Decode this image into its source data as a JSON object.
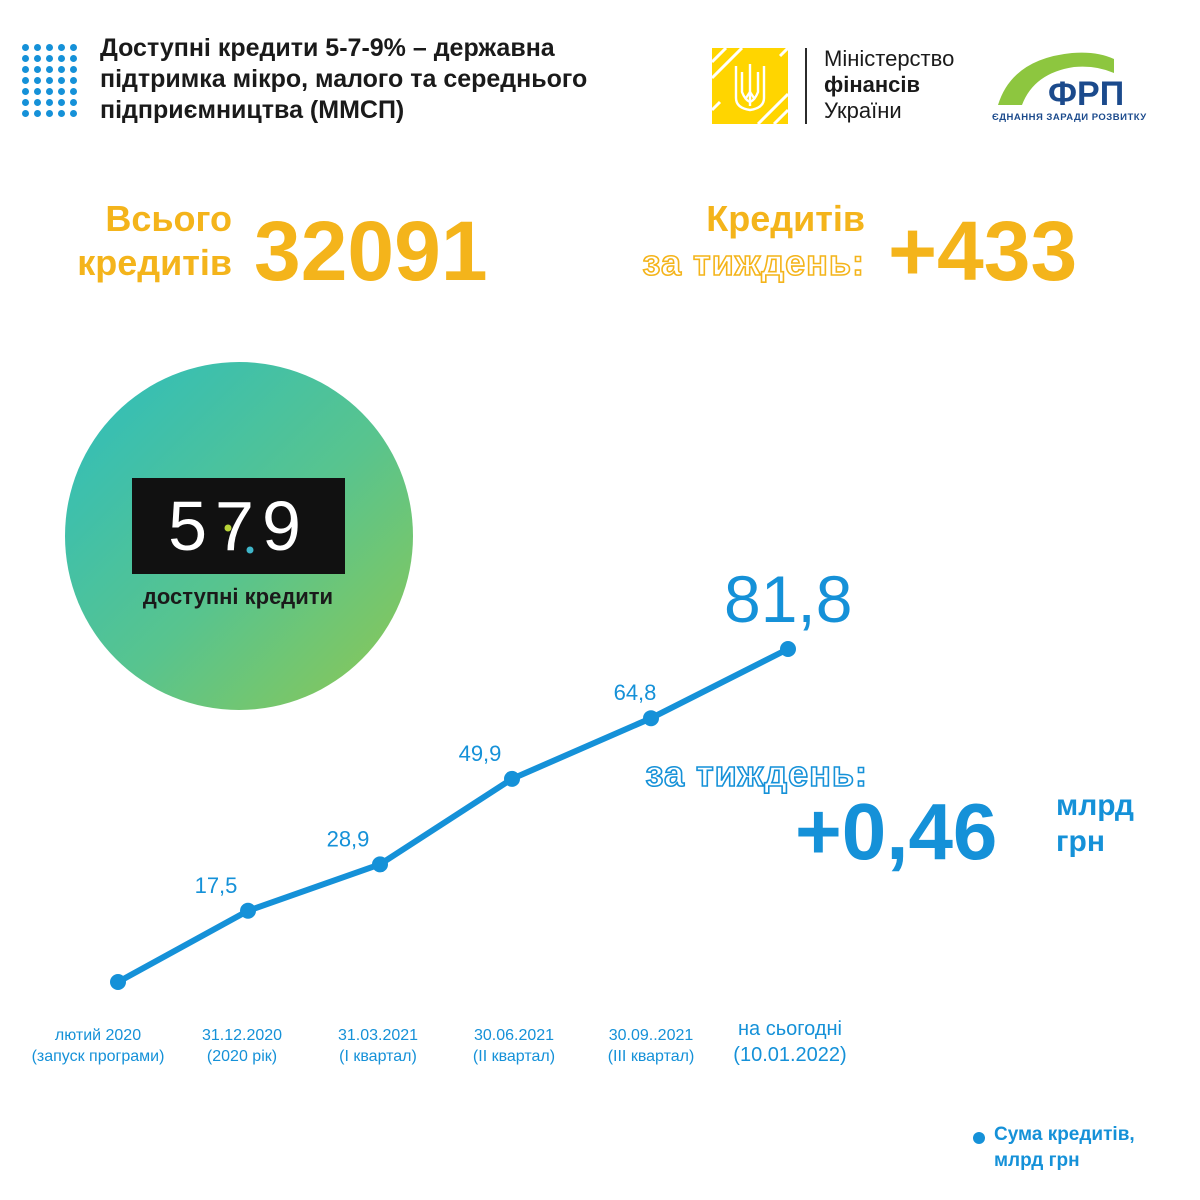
{
  "header": {
    "title_lines": [
      "Доступні кредити 5-7-9% – державна",
      "підтримка мікро, малого та середнього",
      "підприємництва (ММСП)"
    ],
    "ministry": {
      "line1": "Міністерство",
      "line2": "фінансів",
      "line3": "України"
    },
    "frp": {
      "name": "ФРП",
      "slogan": "ЄДНАННЯ ЗАРАДИ РОЗВИТКУ"
    }
  },
  "stats": {
    "total_label_1": "Всього",
    "total_label_2": "кредитів",
    "total_value": "32091",
    "week_label_1": "Кредитів",
    "week_label_2": "за тиждень:",
    "week_value": "+433"
  },
  "logo": {
    "digits": "579",
    "tagline": "доступні кредити"
  },
  "week_amount": {
    "label": "за тиждень:",
    "value": "+0,46",
    "unit_1": "млрд",
    "unit_2": "грн"
  },
  "legend": {
    "line1": "Сума кредитів,",
    "line2": "млрд грн"
  },
  "colors": {
    "accent_yellow": "#f4b41b",
    "accent_blue": "#1591d8",
    "ministry_yellow": "#ffd500",
    "frp_green": "#8dc63f",
    "frp_navy": "#1b4a8c"
  },
  "chart_data": {
    "type": "line",
    "categories": [
      [
        "лютий 2020",
        "(запуск програми)"
      ],
      [
        "31.12.2020",
        "(2020 рік)"
      ],
      [
        "31.03.2021",
        "(I квартал)"
      ],
      [
        "30.06.2021",
        "(II квартал)"
      ],
      [
        "30.09..2021",
        "(III квартал)"
      ],
      [
        "на сьогодні",
        "(10.01.2022)"
      ]
    ],
    "series": [
      {
        "name": "Сума кредитів, млрд грн",
        "values": [
          0,
          17.5,
          28.9,
          49.9,
          64.8,
          81.8
        ],
        "labels": [
          "",
          "17,5",
          "28,9",
          "49,9",
          "64,8",
          "81,8"
        ]
      }
    ],
    "ylim": [
      0,
      81.8
    ],
    "xlabel": "",
    "ylabel": ""
  }
}
